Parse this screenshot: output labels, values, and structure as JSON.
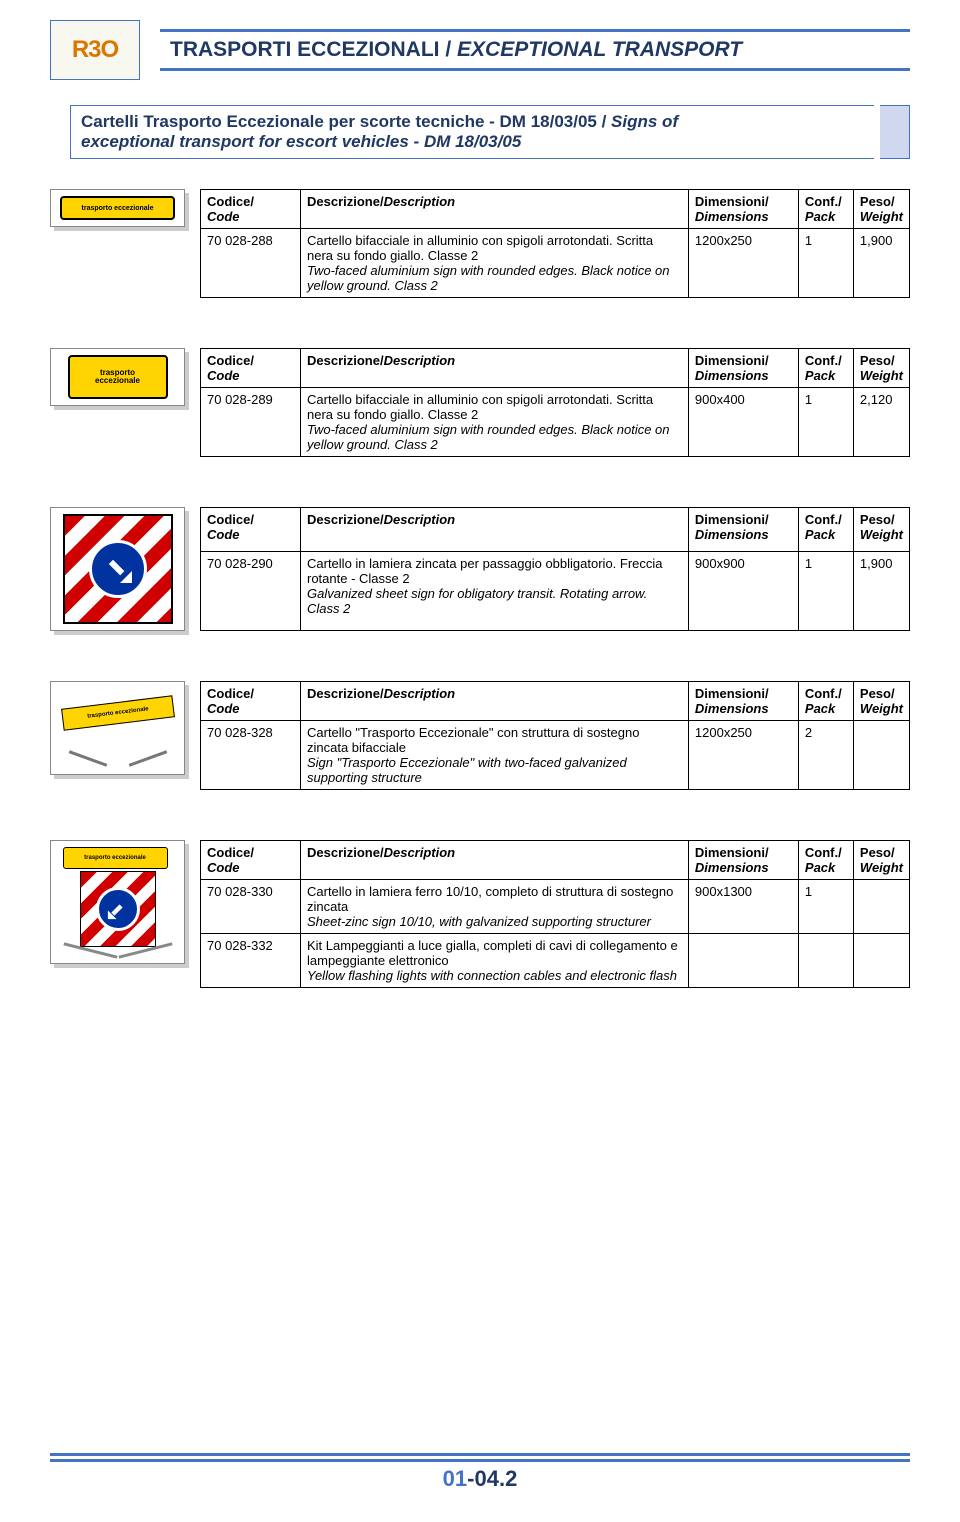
{
  "header": {
    "logo_text": "R3O",
    "title_it": "TRASPORTI ECCEZIONALI",
    "title_sep": " / ",
    "title_en": "EXCEPTIONAL TRANSPORT"
  },
  "subtitle": {
    "line_it": "Cartelli Trasporto Eccezionale per scorte tecniche - DM 18/03/05 / ",
    "line_en_prefix": "Signs of",
    "line_en_rest": "exceptional transport for escort vehicles - DM 18/03/05"
  },
  "columns": {
    "code_it": "Codice/",
    "code_en": "Code",
    "desc_it": "Descrizione/",
    "desc_en": "Description",
    "dim_it": "Dimensioni/",
    "dim_en": "Dimensions",
    "conf_it": "Conf./",
    "conf_en": "Pack",
    "peso_it": "Peso/",
    "peso_en": "Weight"
  },
  "products": [
    {
      "thumb": "yellow_long",
      "rows": [
        {
          "code": "70 028-288",
          "desc_it": "Cartello bifacciale in alluminio con spigoli arrotondati. Scritta nera su fondo giallo. Classe 2",
          "desc_en": "Two-faced aluminium sign with rounded edges. Black notice on yellow ground. Class 2",
          "dim": "1200x250",
          "conf": "1",
          "peso": "1,900"
        }
      ]
    },
    {
      "thumb": "yellow_tall",
      "rows": [
        {
          "code": "70 028-289",
          "desc_it": "Cartello bifacciale in alluminio con spigoli arrotondati. Scritta nera su fondo giallo. Classe 2",
          "desc_en": "Two-faced aluminium sign with rounded edges. Black notice on yellow ground. Class 2",
          "dim": "900x400",
          "conf": "1",
          "peso": "2,120"
        }
      ]
    },
    {
      "thumb": "red_stripe",
      "rows": [
        {
          "code": "70 028-290",
          "desc_it": "Cartello in lamiera zincata per passaggio obbligatorio. Freccia rotante - Classe 2",
          "desc_en": "Galvanized sheet sign for obligatory transit. Rotating arrow. Class 2",
          "dim": "900x900",
          "conf": "1",
          "peso": "1,900"
        }
      ]
    },
    {
      "thumb": "structure",
      "rows": [
        {
          "code": "70 028-328",
          "desc_it": "Cartello \"Trasporto Eccezionale\" con struttura di sostegno zincata bifacciale",
          "desc_en": "Sign \"Trasporto Eccezionale\" with two-faced galvanized supporting structure",
          "dim": "1200x250",
          "conf": "2",
          "peso": ""
        }
      ]
    },
    {
      "thumb": "combo",
      "rows": [
        {
          "code": "70 028-330",
          "desc_it": "Cartello in lamiera ferro 10/10, completo di struttura di sostegno zincata",
          "desc_en": "Sheet-zinc sign 10/10, with galvanized supporting structurer",
          "dim": "900x1300",
          "conf": "1",
          "peso": ""
        },
        {
          "code": "70 028-332",
          "desc_it": "Kit Lampeggianti a luce gialla, completi di cavi di collegamento e lampeggiante elettronico",
          "desc_en": "Yellow flashing lights with connection cables and electronic flash",
          "dim": "",
          "conf": "",
          "peso": ""
        }
      ]
    }
  ],
  "footer": {
    "page_prefix": "01",
    "page_sep": "-",
    "page_suffix": "04.2"
  },
  "colors": {
    "accent": "#4472c4",
    "dark": "#1f3864",
    "yellow": "#ffd400",
    "red": "#d00000",
    "blue_sign": "#0033a0"
  },
  "thumb_labels": {
    "yellow_long": "trasporto eccezionale",
    "yellow_tall_l1": "trasporto",
    "yellow_tall_l2": "eccezionale",
    "structure": "trasporto eccezionale",
    "combo": "trasporto eccezionale"
  }
}
